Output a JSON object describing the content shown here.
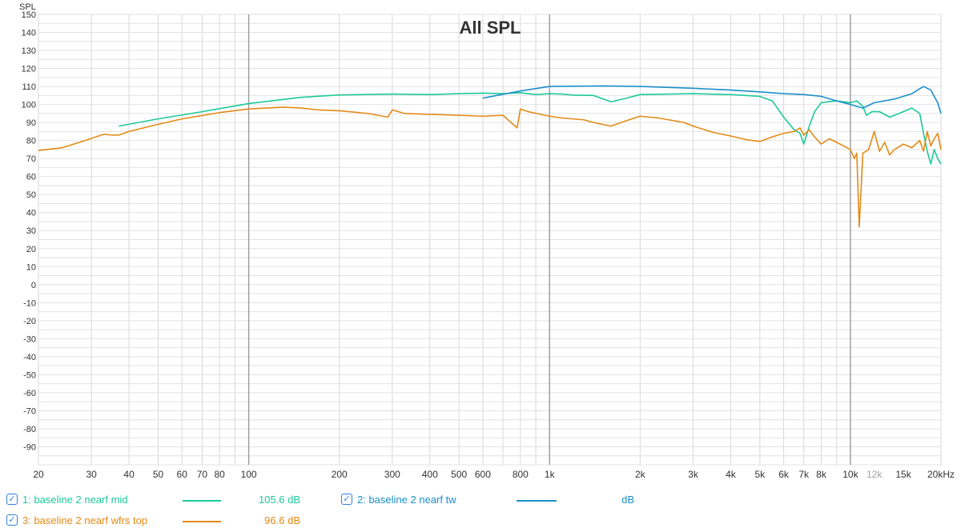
{
  "chart_data": {
    "type": "line",
    "title": "All SPL",
    "ylabel": "SPL",
    "xscale": "log",
    "xlim": [
      20,
      20000
    ],
    "ylim": [
      -100,
      150
    ],
    "yticks": [
      150,
      140,
      130,
      120,
      110,
      100,
      90,
      80,
      70,
      60,
      50,
      40,
      30,
      20,
      10,
      0,
      -10,
      -20,
      -30,
      -40,
      -50,
      -60,
      -70,
      -80,
      -90
    ],
    "xticks": [
      {
        "v": 20,
        "label": "20"
      },
      {
        "v": 30,
        "label": "30"
      },
      {
        "v": 40,
        "label": "40"
      },
      {
        "v": 50,
        "label": "50"
      },
      {
        "v": 60,
        "label": "60"
      },
      {
        "v": 70,
        "label": "70"
      },
      {
        "v": 80,
        "label": "80"
      },
      {
        "v": 100,
        "label": "100"
      },
      {
        "v": 200,
        "label": "200"
      },
      {
        "v": 300,
        "label": "300"
      },
      {
        "v": 400,
        "label": "400"
      },
      {
        "v": 500,
        "label": "500"
      },
      {
        "v": 600,
        "label": "600"
      },
      {
        "v": 800,
        "label": "800"
      },
      {
        "v": 1000,
        "label": "1k"
      },
      {
        "v": 2000,
        "label": "2k"
      },
      {
        "v": 3000,
        "label": "3k"
      },
      {
        "v": 4000,
        "label": "4k"
      },
      {
        "v": 5000,
        "label": "5k"
      },
      {
        "v": 6000,
        "label": "6k"
      },
      {
        "v": 7000,
        "label": "7k"
      },
      {
        "v": 8000,
        "label": "8k"
      },
      {
        "v": 10000,
        "label": "10k"
      },
      {
        "v": 12000,
        "label": "12k"
      },
      {
        "v": 15000,
        "label": "15k"
      },
      {
        "v": 20000,
        "label": "20kHz"
      }
    ],
    "grid": true,
    "series": [
      {
        "name": "1: baseline 2 nearf mid",
        "color": "#1dc99a",
        "legend_value": "105.6 dB",
        "points": [
          [
            37,
            88
          ],
          [
            50,
            92
          ],
          [
            70,
            96
          ],
          [
            100,
            100.5
          ],
          [
            150,
            104
          ],
          [
            200,
            105.3
          ],
          [
            300,
            105.8
          ],
          [
            400,
            105.5
          ],
          [
            500,
            106
          ],
          [
            600,
            106.3
          ],
          [
            700,
            106
          ],
          [
            800,
            106.5
          ],
          [
            900,
            105.5
          ],
          [
            1000,
            106
          ],
          [
            1100,
            105.8
          ],
          [
            1200,
            105.2
          ],
          [
            1400,
            105
          ],
          [
            1600,
            101.5
          ],
          [
            1800,
            103.5
          ],
          [
            2000,
            105.5
          ],
          [
            2500,
            105.8
          ],
          [
            3000,
            106
          ],
          [
            4000,
            105.5
          ],
          [
            5000,
            104.5
          ],
          [
            5500,
            102
          ],
          [
            6000,
            93
          ],
          [
            6500,
            86
          ],
          [
            6800,
            84
          ],
          [
            7000,
            78
          ],
          [
            7300,
            88
          ],
          [
            7600,
            96
          ],
          [
            8000,
            101
          ],
          [
            9000,
            102
          ],
          [
            10000,
            101
          ],
          [
            10500,
            102
          ],
          [
            11000,
            99
          ],
          [
            11300,
            94
          ],
          [
            11800,
            96
          ],
          [
            12500,
            96
          ],
          [
            13500,
            93
          ],
          [
            14500,
            95
          ],
          [
            16000,
            98
          ],
          [
            17000,
            95
          ],
          [
            17500,
            84
          ],
          [
            18000,
            74
          ],
          [
            18500,
            67
          ],
          [
            19000,
            75
          ],
          [
            19500,
            70
          ],
          [
            20000,
            67
          ]
        ]
      },
      {
        "name": "2: baseline 2 nearf tw",
        "color": "#1b8fc9",
        "legend_value": "dB",
        "points": [
          [
            600,
            103.5
          ],
          [
            800,
            107.5
          ],
          [
            1000,
            110
          ],
          [
            1500,
            110.3
          ],
          [
            2000,
            110
          ],
          [
            3000,
            109
          ],
          [
            4000,
            108
          ],
          [
            5000,
            107
          ],
          [
            6000,
            106
          ],
          [
            7000,
            105.5
          ],
          [
            8000,
            104.5
          ],
          [
            9000,
            102
          ],
          [
            10000,
            100
          ],
          [
            11000,
            98
          ],
          [
            12000,
            101
          ],
          [
            14000,
            103
          ],
          [
            16000,
            106
          ],
          [
            17500,
            110
          ],
          [
            18500,
            108
          ],
          [
            19500,
            101
          ],
          [
            20000,
            95
          ]
        ]
      },
      {
        "name": "3: baseline 2 nearf wfrs top",
        "color": "#e38a16",
        "legend_value": "96.6 dB",
        "points": [
          [
            20,
            74.5
          ],
          [
            24,
            76
          ],
          [
            28,
            79.5
          ],
          [
            33,
            83.5
          ],
          [
            35,
            83
          ],
          [
            37,
            83
          ],
          [
            40,
            85
          ],
          [
            50,
            89
          ],
          [
            60,
            92
          ],
          [
            80,
            95.5
          ],
          [
            100,
            97.5
          ],
          [
            130,
            98.5
          ],
          [
            150,
            98
          ],
          [
            170,
            97
          ],
          [
            200,
            96.5
          ],
          [
            250,
            95
          ],
          [
            290,
            93
          ],
          [
            300,
            97
          ],
          [
            330,
            95
          ],
          [
            400,
            94.5
          ],
          [
            500,
            94
          ],
          [
            600,
            93.5
          ],
          [
            700,
            94
          ],
          [
            780,
            87
          ],
          [
            800,
            97.5
          ],
          [
            850,
            96
          ],
          [
            1000,
            93.5
          ],
          [
            1100,
            92.5
          ],
          [
            1300,
            91.5
          ],
          [
            1400,
            90
          ],
          [
            1600,
            88
          ],
          [
            1800,
            91
          ],
          [
            2000,
            93.5
          ],
          [
            2300,
            92.5
          ],
          [
            2800,
            90
          ],
          [
            3000,
            88
          ],
          [
            3500,
            84.5
          ],
          [
            4000,
            82.5
          ],
          [
            4500,
            80.5
          ],
          [
            5000,
            79.5
          ],
          [
            5500,
            82
          ],
          [
            6000,
            84
          ],
          [
            6500,
            85
          ],
          [
            6800,
            87
          ],
          [
            7000,
            83
          ],
          [
            7300,
            86
          ],
          [
            7600,
            82
          ],
          [
            8000,
            78
          ],
          [
            8500,
            81
          ],
          [
            9000,
            79
          ],
          [
            9500,
            77
          ],
          [
            10000,
            75
          ],
          [
            10300,
            70
          ],
          [
            10500,
            73
          ],
          [
            10700,
            32
          ],
          [
            11000,
            73
          ],
          [
            11500,
            75
          ],
          [
            12000,
            85
          ],
          [
            12500,
            74
          ],
          [
            13000,
            79
          ],
          [
            13500,
            72
          ],
          [
            14000,
            75
          ],
          [
            15000,
            78
          ],
          [
            16000,
            76
          ],
          [
            17000,
            80
          ],
          [
            17500,
            74
          ],
          [
            18000,
            85
          ],
          [
            18500,
            77
          ],
          [
            19000,
            81
          ],
          [
            19500,
            84
          ],
          [
            20000,
            75
          ]
        ]
      }
    ]
  }
}
